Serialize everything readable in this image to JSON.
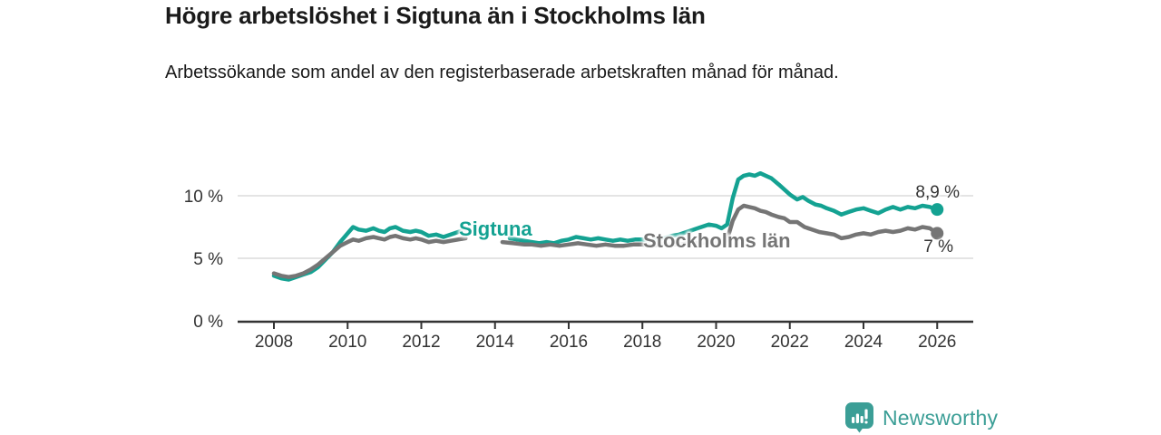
{
  "title": "Högre arbetslöshet i Sigtuna än i Stockholms län",
  "subtitle": "Arbetssökande som andel av den registerbaserade arbetskraften månad för månad.",
  "branding": {
    "logo_text": "Newsworthy",
    "logo_icon": "bar-chart-speech-bubble-icon",
    "logo_color": "#3b9e96"
  },
  "chart_data": {
    "type": "line",
    "title": "Högre arbetslöshet i Sigtuna än i Stockholms län",
    "xlabel": "",
    "ylabel": "Arbetssökande som andel av den registerbaserade arbetskraften",
    "xlim": [
      2007,
      2027
    ],
    "ylim": [
      0,
      13.5
    ],
    "grid": "horizontal",
    "legend_position": "inline-labels",
    "x_ticks": [
      2008,
      2010,
      2012,
      2014,
      2016,
      2018,
      2020,
      2022,
      2024,
      2026
    ],
    "x_tick_labels": [
      "2008",
      "2010",
      "2012",
      "2014",
      "2016",
      "2018",
      "2020",
      "2022",
      "2024",
      "2026"
    ],
    "y_ticks": [
      {
        "value": 0,
        "label": "0 %"
      },
      {
        "value": 5,
        "label": "5 %"
      },
      {
        "value": 10,
        "label": "10 %"
      }
    ],
    "axis_color": "#333333",
    "gridline_color": "#dcdcdc",
    "series": [
      {
        "name": "Sigtuna",
        "color": "#14a292",
        "end_value": 8.9,
        "end_label": "8,9 %",
        "points": [
          [
            2008.0,
            3.6
          ],
          [
            2008.2,
            3.4
          ],
          [
            2008.4,
            3.3
          ],
          [
            2008.6,
            3.5
          ],
          [
            2008.8,
            3.7
          ],
          [
            2009.0,
            3.9
          ],
          [
            2009.2,
            4.3
          ],
          [
            2009.4,
            4.9
          ],
          [
            2009.6,
            5.5
          ],
          [
            2009.8,
            6.3
          ],
          [
            2010.0,
            7.0
          ],
          [
            2010.15,
            7.5
          ],
          [
            2010.3,
            7.3
          ],
          [
            2010.5,
            7.2
          ],
          [
            2010.7,
            7.4
          ],
          [
            2010.85,
            7.2
          ],
          [
            2011.0,
            7.1
          ],
          [
            2011.15,
            7.4
          ],
          [
            2011.3,
            7.5
          ],
          [
            2011.5,
            7.2
          ],
          [
            2011.7,
            7.1
          ],
          [
            2011.85,
            7.2
          ],
          [
            2012.0,
            7.1
          ],
          [
            2012.2,
            6.8
          ],
          [
            2012.4,
            6.9
          ],
          [
            2012.6,
            6.7
          ],
          [
            2012.8,
            6.9
          ],
          [
            2013.0,
            7.1
          ],
          [
            2013.2,
            7.3
          ],
          [
            2013.5,
            null
          ],
          [
            2014.4,
            6.6
          ],
          [
            2014.6,
            6.5
          ],
          [
            2014.8,
            6.4
          ],
          [
            2015.0,
            6.3
          ],
          [
            2015.2,
            6.2
          ],
          [
            2015.4,
            6.3
          ],
          [
            2015.6,
            6.2
          ],
          [
            2015.8,
            6.4
          ],
          [
            2016.0,
            6.5
          ],
          [
            2016.2,
            6.7
          ],
          [
            2016.4,
            6.6
          ],
          [
            2016.6,
            6.5
          ],
          [
            2016.8,
            6.6
          ],
          [
            2017.0,
            6.5
          ],
          [
            2017.2,
            6.4
          ],
          [
            2017.4,
            6.5
          ],
          [
            2017.6,
            6.4
          ],
          [
            2017.8,
            6.5
          ],
          [
            2018.0,
            6.5
          ],
          [
            2018.2,
            6.4
          ],
          [
            2018.4,
            6.5
          ],
          [
            2018.6,
            6.6
          ],
          [
            2018.8,
            6.8
          ],
          [
            2019.0,
            6.9
          ],
          [
            2019.2,
            7.1
          ],
          [
            2019.4,
            7.3
          ],
          [
            2019.6,
            7.5
          ],
          [
            2019.8,
            7.7
          ],
          [
            2020.0,
            7.6
          ],
          [
            2020.15,
            7.4
          ],
          [
            2020.3,
            7.7
          ],
          [
            2020.45,
            9.8
          ],
          [
            2020.6,
            11.3
          ],
          [
            2020.75,
            11.6
          ],
          [
            2020.9,
            11.7
          ],
          [
            2021.05,
            11.6
          ],
          [
            2021.2,
            11.8
          ],
          [
            2021.35,
            11.6
          ],
          [
            2021.5,
            11.4
          ],
          [
            2021.7,
            10.9
          ],
          [
            2021.85,
            10.5
          ],
          [
            2022.0,
            10.1
          ],
          [
            2022.2,
            9.7
          ],
          [
            2022.35,
            9.9
          ],
          [
            2022.5,
            9.6
          ],
          [
            2022.7,
            9.3
          ],
          [
            2022.85,
            9.2
          ],
          [
            2023.0,
            9.0
          ],
          [
            2023.2,
            8.8
          ],
          [
            2023.4,
            8.5
          ],
          [
            2023.6,
            8.7
          ],
          [
            2023.8,
            8.9
          ],
          [
            2024.0,
            9.0
          ],
          [
            2024.2,
            8.8
          ],
          [
            2024.4,
            8.6
          ],
          [
            2024.6,
            8.9
          ],
          [
            2024.8,
            9.1
          ],
          [
            2025.0,
            8.9
          ],
          [
            2025.2,
            9.1
          ],
          [
            2025.4,
            9.0
          ],
          [
            2025.6,
            9.2
          ],
          [
            2025.8,
            9.1
          ],
          [
            2026.0,
            8.9
          ]
        ]
      },
      {
        "name": "Stockholms län",
        "color": "#757575",
        "end_value": 7.0,
        "end_label": "7 %",
        "points": [
          [
            2008.0,
            3.8
          ],
          [
            2008.2,
            3.6
          ],
          [
            2008.4,
            3.5
          ],
          [
            2008.6,
            3.6
          ],
          [
            2008.8,
            3.8
          ],
          [
            2009.0,
            4.1
          ],
          [
            2009.2,
            4.5
          ],
          [
            2009.4,
            5.0
          ],
          [
            2009.6,
            5.5
          ],
          [
            2009.8,
            6.0
          ],
          [
            2010.0,
            6.3
          ],
          [
            2010.15,
            6.5
          ],
          [
            2010.3,
            6.4
          ],
          [
            2010.5,
            6.6
          ],
          [
            2010.7,
            6.7
          ],
          [
            2010.85,
            6.6
          ],
          [
            2011.0,
            6.5
          ],
          [
            2011.15,
            6.7
          ],
          [
            2011.3,
            6.8
          ],
          [
            2011.5,
            6.6
          ],
          [
            2011.7,
            6.5
          ],
          [
            2011.85,
            6.6
          ],
          [
            2012.0,
            6.5
          ],
          [
            2012.2,
            6.3
          ],
          [
            2012.4,
            6.4
          ],
          [
            2012.6,
            6.3
          ],
          [
            2012.8,
            6.4
          ],
          [
            2013.0,
            6.5
          ],
          [
            2013.2,
            6.6
          ],
          [
            2013.5,
            null
          ],
          [
            2014.2,
            6.3
          ],
          [
            2014.5,
            6.2
          ],
          [
            2014.8,
            6.1
          ],
          [
            2015.0,
            6.1
          ],
          [
            2015.25,
            6.0
          ],
          [
            2015.5,
            6.1
          ],
          [
            2015.75,
            6.0
          ],
          [
            2016.0,
            6.1
          ],
          [
            2016.25,
            6.2
          ],
          [
            2016.5,
            6.1
          ],
          [
            2016.75,
            6.0
          ],
          [
            2017.0,
            6.1
          ],
          [
            2017.25,
            6.0
          ],
          [
            2017.5,
            6.0
          ],
          [
            2017.75,
            6.1
          ],
          [
            2018.0,
            6.1
          ],
          [
            2018.25,
            6.0
          ],
          [
            2018.5,
            6.1
          ],
          [
            2018.75,
            6.1
          ],
          [
            2019.0,
            6.1
          ],
          [
            2019.25,
            6.2
          ],
          [
            2019.5,
            6.2
          ],
          [
            2019.75,
            6.3
          ],
          [
            2020.0,
            6.3
          ],
          [
            2020.15,
            6.2
          ],
          [
            2020.3,
            6.5
          ],
          [
            2020.45,
            8.0
          ],
          [
            2020.6,
            8.9
          ],
          [
            2020.75,
            9.2
          ],
          [
            2020.9,
            9.1
          ],
          [
            2021.05,
            9.0
          ],
          [
            2021.2,
            8.8
          ],
          [
            2021.35,
            8.7
          ],
          [
            2021.5,
            8.5
          ],
          [
            2021.7,
            8.3
          ],
          [
            2021.85,
            8.2
          ],
          [
            2022.0,
            7.9
          ],
          [
            2022.2,
            7.9
          ],
          [
            2022.4,
            7.5
          ],
          [
            2022.6,
            7.3
          ],
          [
            2022.8,
            7.1
          ],
          [
            2023.0,
            7.0
          ],
          [
            2023.2,
            6.9
          ],
          [
            2023.4,
            6.6
          ],
          [
            2023.6,
            6.7
          ],
          [
            2023.8,
            6.9
          ],
          [
            2024.0,
            7.0
          ],
          [
            2024.2,
            6.9
          ],
          [
            2024.4,
            7.1
          ],
          [
            2024.6,
            7.2
          ],
          [
            2024.8,
            7.1
          ],
          [
            2025.0,
            7.2
          ],
          [
            2025.2,
            7.4
          ],
          [
            2025.4,
            7.3
          ],
          [
            2025.6,
            7.5
          ],
          [
            2025.8,
            7.4
          ],
          [
            2026.0,
            7.0
          ]
        ]
      }
    ]
  }
}
